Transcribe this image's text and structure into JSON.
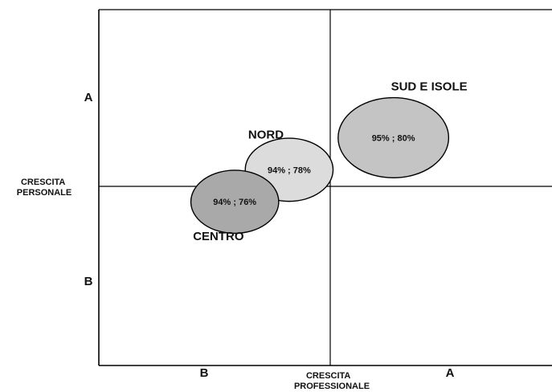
{
  "chart_data": {
    "type": "scatter",
    "subtype": "bubble-quadrant",
    "title": "",
    "xlabel": "CRESCITA PROFESSIONALE",
    "ylabel": "CRESCITA PERSONALE",
    "x_ticks": [
      "B",
      "A"
    ],
    "y_ticks": [
      "A",
      "B"
    ],
    "grid": false,
    "legend": "none",
    "series": [
      {
        "name": "SUD E ISOLE",
        "label": "95% ; 80%",
        "x": 0.65,
        "y": 0.64,
        "size": 1.0,
        "fill": "#c4c4c4"
      },
      {
        "name": "NORD",
        "label": "94% ; 78%",
        "x": 0.42,
        "y": 0.55,
        "size": 0.5,
        "fill": "#dcdcdc"
      },
      {
        "name": "CENTRO",
        "label": "94% ; 76%",
        "x": 0.3,
        "y": 0.46,
        "size": 0.5,
        "fill": "#a9a9a9"
      }
    ]
  }
}
